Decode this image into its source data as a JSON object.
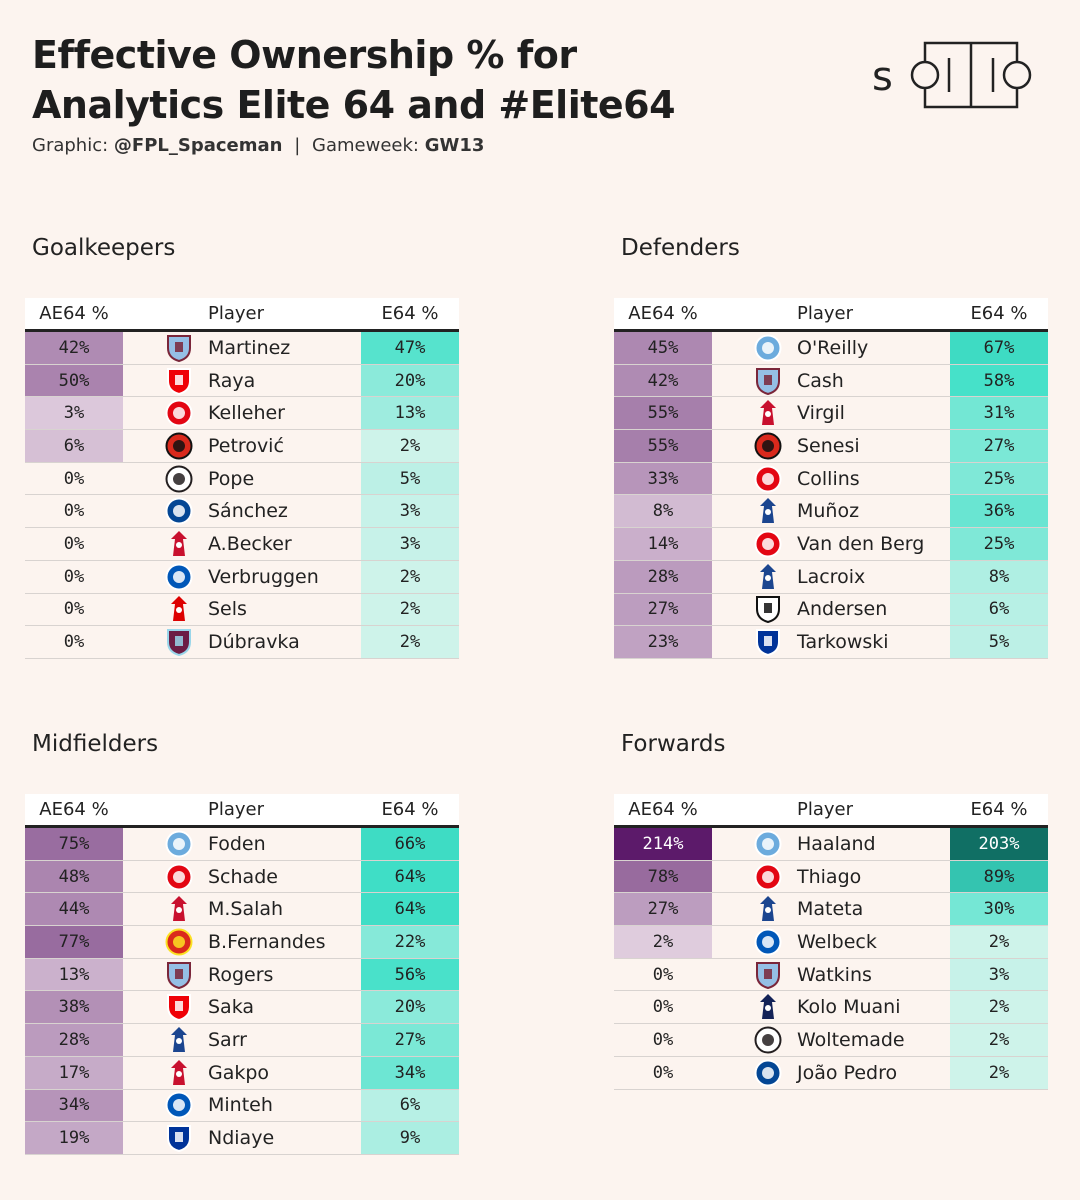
{
  "header": {
    "title_line1": "Effective Ownership % for",
    "title_line2": "Analytics Elite 64 and #Elite64",
    "graphic_label": "Graphic:",
    "graphic_value": "@FPL_Spaceman",
    "separator": "|",
    "gameweek_label": "Gameweek:",
    "gameweek_value": "GW13"
  },
  "logo": {
    "text": "solio"
  },
  "chart_data": {
    "type": "table",
    "columns": [
      "AE64 %",
      "Player",
      "E64 %"
    ],
    "ae64_color_max": "#5c1a6a",
    "e64_color_max": "#0f6e63",
    "tables": [
      {
        "title": "Goalkeepers",
        "rows": [
          {
            "ae64": 42,
            "player": "Martinez",
            "e64": 47,
            "club": "aston-villa"
          },
          {
            "ae64": 50,
            "player": "Raya",
            "e64": 20,
            "club": "arsenal"
          },
          {
            "ae64": 3,
            "player": "Kelleher",
            "e64": 13,
            "club": "brentford"
          },
          {
            "ae64": 6,
            "player": "Petrović",
            "e64": 2,
            "club": "bournemouth"
          },
          {
            "ae64": 0,
            "player": "Pope",
            "e64": 5,
            "club": "newcastle"
          },
          {
            "ae64": 0,
            "player": "Sánchez",
            "e64": 3,
            "club": "chelsea"
          },
          {
            "ae64": 0,
            "player": "A.Becker",
            "e64": 3,
            "club": "liverpool"
          },
          {
            "ae64": 0,
            "player": "Verbruggen",
            "e64": 2,
            "club": "brighton"
          },
          {
            "ae64": 0,
            "player": "Sels",
            "e64": 2,
            "club": "nottingham-forest"
          },
          {
            "ae64": 0,
            "player": "Dúbravka",
            "e64": 2,
            "club": "burnley"
          }
        ]
      },
      {
        "title": "Defenders",
        "rows": [
          {
            "ae64": 45,
            "player": "O'Reilly",
            "e64": 67,
            "club": "man-city"
          },
          {
            "ae64": 42,
            "player": "Cash",
            "e64": 58,
            "club": "aston-villa"
          },
          {
            "ae64": 55,
            "player": "Virgil",
            "e64": 31,
            "club": "liverpool"
          },
          {
            "ae64": 55,
            "player": "Senesi",
            "e64": 27,
            "club": "bournemouth"
          },
          {
            "ae64": 33,
            "player": "Collins",
            "e64": 25,
            "club": "brentford"
          },
          {
            "ae64": 8,
            "player": "Muñoz",
            "e64": 36,
            "club": "crystal-palace"
          },
          {
            "ae64": 14,
            "player": "Van den Berg",
            "e64": 25,
            "club": "brentford"
          },
          {
            "ae64": 28,
            "player": "Lacroix",
            "e64": 8,
            "club": "crystal-palace"
          },
          {
            "ae64": 27,
            "player": "Andersen",
            "e64": 6,
            "club": "fulham"
          },
          {
            "ae64": 23,
            "player": "Tarkowski",
            "e64": 5,
            "club": "everton"
          }
        ]
      },
      {
        "title": "Midfielders",
        "rows": [
          {
            "ae64": 75,
            "player": "Foden",
            "e64": 66,
            "club": "man-city"
          },
          {
            "ae64": 48,
            "player": "Schade",
            "e64": 64,
            "club": "brentford"
          },
          {
            "ae64": 44,
            "player": "M.Salah",
            "e64": 64,
            "club": "liverpool"
          },
          {
            "ae64": 77,
            "player": "B.Fernandes",
            "e64": 22,
            "club": "man-utd"
          },
          {
            "ae64": 13,
            "player": "Rogers",
            "e64": 56,
            "club": "aston-villa"
          },
          {
            "ae64": 38,
            "player": "Saka",
            "e64": 20,
            "club": "arsenal"
          },
          {
            "ae64": 28,
            "player": "Sarr",
            "e64": 27,
            "club": "crystal-palace"
          },
          {
            "ae64": 17,
            "player": "Gakpo",
            "e64": 34,
            "club": "liverpool"
          },
          {
            "ae64": 34,
            "player": "Minteh",
            "e64": 6,
            "club": "brighton"
          },
          {
            "ae64": 19,
            "player": "Ndiaye",
            "e64": 9,
            "club": "everton"
          }
        ]
      },
      {
        "title": "Forwards",
        "rows": [
          {
            "ae64": 214,
            "player": "Haaland",
            "e64": 203,
            "club": "man-city"
          },
          {
            "ae64": 78,
            "player": "Thiago",
            "e64": 89,
            "club": "brentford"
          },
          {
            "ae64": 27,
            "player": "Mateta",
            "e64": 30,
            "club": "crystal-palace"
          },
          {
            "ae64": 2,
            "player": "Welbeck",
            "e64": 2,
            "club": "brighton"
          },
          {
            "ae64": 0,
            "player": "Watkins",
            "e64": 3,
            "club": "aston-villa"
          },
          {
            "ae64": 0,
            "player": "Kolo Muani",
            "e64": 2,
            "club": "tottenham"
          },
          {
            "ae64": 0,
            "player": "Woltemade",
            "e64": 2,
            "club": "newcastle"
          },
          {
            "ae64": 0,
            "player": "João Pedro",
            "e64": 2,
            "club": "chelsea"
          }
        ]
      }
    ]
  },
  "club_colors": {
    "aston-villa": [
      "#95bfe5",
      "#7a263a"
    ],
    "arsenal": [
      "#ef0107",
      "#ffffff"
    ],
    "brentford": [
      "#e30613",
      "#ffffff"
    ],
    "bournemouth": [
      "#da291c",
      "#111111"
    ],
    "newcastle": [
      "#ffffff",
      "#241f20"
    ],
    "chelsea": [
      "#034694",
      "#ffffff"
    ],
    "liverpool": [
      "#ffffff",
      "#c8102e"
    ],
    "brighton": [
      "#0057b8",
      "#ffffff"
    ],
    "nottingham-forest": [
      "#ffffff",
      "#dd0000"
    ],
    "burnley": [
      "#6c1d45",
      "#99d6ea"
    ],
    "man-city": [
      "#6cabdd",
      "#ffffff"
    ],
    "crystal-palace": [
      "#ffffff",
      "#1b458f"
    ],
    "fulham": [
      "#ffffff",
      "#111111"
    ],
    "everton": [
      "#003399",
      "#ffffff"
    ],
    "man-utd": [
      "#da291c",
      "#fbe122"
    ],
    "tottenham": [
      "#ffffff",
      "#132257"
    ]
  }
}
